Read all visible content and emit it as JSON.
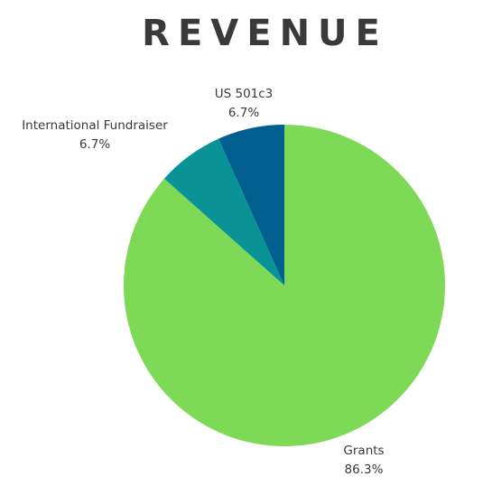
{
  "chart_data": {
    "type": "pie",
    "title": "REVENUE",
    "slices": [
      {
        "label": "Grants",
        "value": 86.3,
        "display": "86.3%",
        "color": "#7ed957"
      },
      {
        "label": "International Fundraiser",
        "value": 6.7,
        "display": "6.7%",
        "color": "#0a9396"
      },
      {
        "label": "US 501c3",
        "value": 6.7,
        "display": "6.7%",
        "color": "#005f8f"
      }
    ],
    "start_angle_deg": 0,
    "direction": "clockwise",
    "legend": "none"
  }
}
